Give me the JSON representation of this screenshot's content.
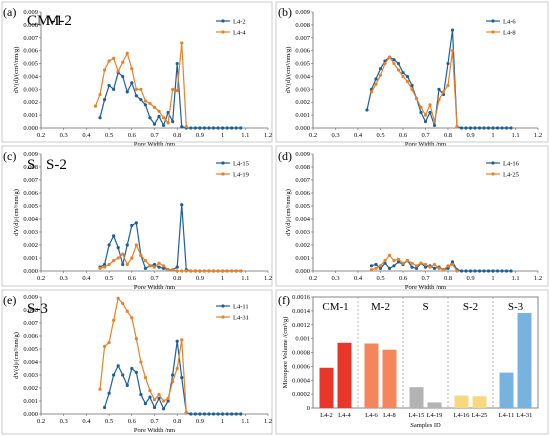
{
  "panel_letters": [
    "(a)",
    "(b)",
    "(c)",
    "(d)",
    "(e)",
    "(f)"
  ],
  "chart_data": [
    {
      "type": "line",
      "panel": "(a)",
      "title": "CM-1",
      "xlabel": "Pore Width /nm",
      "ylabel": "dV(d)/(cm³/nm/g)",
      "xlim": [
        0.2,
        1.2
      ],
      "ylim": [
        0,
        0.009
      ],
      "xticks": [
        "0.2",
        "0.3",
        "0.4",
        "0.5",
        "0.6",
        "0.7",
        "0.8",
        "0.9",
        "1",
        "1.1",
        "1.2"
      ],
      "yticks": [
        "0.000",
        "0.001",
        "0.002",
        "0.003",
        "0.004",
        "0.005",
        "0.006",
        "0.007",
        "0.008",
        "0.009"
      ],
      "legend_position": "top-right",
      "series": [
        {
          "name": "L4-2",
          "color": "#1f5f96",
          "x": [
            0.46,
            0.48,
            0.5,
            0.52,
            0.54,
            0.56,
            0.58,
            0.6,
            0.62,
            0.64,
            0.66,
            0.68,
            0.7,
            0.72,
            0.74,
            0.76,
            0.78,
            0.8,
            0.82,
            0.84,
            0.86,
            0.88,
            0.9,
            0.92,
            0.94,
            0.96,
            0.98,
            1.0,
            1.02,
            1.04,
            1.06,
            1.08
          ],
          "y": [
            0.0008,
            0.0022,
            0.0033,
            0.003,
            0.0043,
            0.004,
            0.0028,
            0.0035,
            0.0025,
            0.0022,
            0.0018,
            0.0008,
            0.0003,
            0.0009,
            0.0002,
            0.0012,
            0.0005,
            0.005,
            0.0001,
            0,
            0,
            0,
            0,
            0,
            0,
            0,
            0,
            0,
            0,
            0,
            0,
            0
          ]
        },
        {
          "name": "L4-4",
          "color": "#e8822a",
          "x": [
            0.44,
            0.46,
            0.48,
            0.5,
            0.52,
            0.54,
            0.56,
            0.58,
            0.6,
            0.62,
            0.64,
            0.66,
            0.68,
            0.7,
            0.72,
            0.74,
            0.76,
            0.78,
            0.8,
            0.82,
            0.84
          ],
          "y": [
            0.0017,
            0.0026,
            0.0045,
            0.0052,
            0.0054,
            0.0044,
            0.0051,
            0.0058,
            0.0046,
            0.003,
            0.003,
            0.0021,
            0.0019,
            0.0016,
            0.0013,
            0.0008,
            0.0004,
            0.003,
            0.0029,
            0.0066,
            0.0001
          ]
        }
      ]
    },
    {
      "type": "line",
      "panel": "(b)",
      "title": "M-2",
      "xlabel": "Pore Width /nm",
      "ylabel": "dV(d)/(cm³/nm/g)",
      "xlim": [
        0.2,
        1.2
      ],
      "ylim": [
        0,
        0.009
      ],
      "xticks": [
        "0.2",
        "0.3",
        "0.4",
        "0.5",
        "0.6",
        "0.7",
        "0.8",
        "0.9",
        "1",
        "1.1",
        "1.2"
      ],
      "yticks": [
        "0.000",
        "0.001",
        "0.002",
        "0.003",
        "0.004",
        "0.005",
        "0.006",
        "0.007",
        "0.008",
        "0.009"
      ],
      "legend_position": "top-right",
      "series": [
        {
          "name": "L4-6",
          "color": "#1f5f96",
          "x": [
            0.44,
            0.46,
            0.48,
            0.5,
            0.52,
            0.54,
            0.56,
            0.58,
            0.6,
            0.62,
            0.64,
            0.66,
            0.68,
            0.7,
            0.72,
            0.74,
            0.76,
            0.78,
            0.8,
            0.82,
            0.84,
            0.86,
            0.88,
            0.9,
            0.92,
            0.94,
            0.96,
            0.98,
            1.0,
            1.02,
            1.04,
            1.06,
            1.08
          ],
          "y": [
            0.0014,
            0.003,
            0.0038,
            0.0046,
            0.0052,
            0.0055,
            0.0053,
            0.005,
            0.0043,
            0.004,
            0.0033,
            0.0023,
            0.0012,
            0.0005,
            0.0012,
            0.0002,
            0.003,
            0.0026,
            0.005,
            0.0076,
            0.0001,
            0,
            0,
            0,
            0,
            0,
            0,
            0,
            0,
            0,
            0,
            0,
            0
          ]
        },
        {
          "name": "L4-8",
          "color": "#e8822a",
          "x": [
            0.46,
            0.48,
            0.5,
            0.52,
            0.54,
            0.56,
            0.58,
            0.6,
            0.62,
            0.64,
            0.66,
            0.68,
            0.7,
            0.72,
            0.74,
            0.76,
            0.78,
            0.8,
            0.82,
            0.84
          ],
          "y": [
            0.0028,
            0.0034,
            0.0041,
            0.005,
            0.0055,
            0.005,
            0.0045,
            0.004,
            0.0036,
            0.003,
            0.0023,
            0.0016,
            0.001,
            0.0018,
            0.0005,
            0.0022,
            0.0028,
            0.0033,
            0.006,
            0.0001
          ]
        }
      ]
    },
    {
      "type": "line",
      "panel": "(c)",
      "title": "S",
      "xlabel": "Pore Width /nm",
      "ylabel": "dV(d)/(cm³/nm/g)",
      "xlim": [
        0.2,
        1.2
      ],
      "ylim": [
        0,
        0.009
      ],
      "xticks": [
        "0.2",
        "0.3",
        "0.4",
        "0.5",
        "0.6",
        "0.7",
        "0.8",
        "0.9",
        "1",
        "1.1",
        "1.2"
      ],
      "yticks": [
        "0.000",
        "0.001",
        "0.002",
        "0.003",
        "0.004",
        "0.005",
        "0.006",
        "0.007",
        "0.008",
        "0.009"
      ],
      "legend_position": "top-right",
      "series": [
        {
          "name": "L4-15",
          "color": "#1f5f96",
          "x": [
            0.46,
            0.48,
            0.5,
            0.52,
            0.54,
            0.56,
            0.58,
            0.6,
            0.62,
            0.64,
            0.66,
            0.68,
            0.7,
            0.72,
            0.74,
            0.76,
            0.78,
            0.8,
            0.82,
            0.84,
            0.86,
            0.88,
            0.9,
            0.92,
            0.94,
            0.96,
            0.98,
            1.0,
            1.02,
            1.04,
            1.06,
            1.08
          ],
          "y": [
            0.0003,
            0.0005,
            0.002,
            0.0027,
            0.0018,
            0.0005,
            0.002,
            0.0035,
            0.0037,
            0.0012,
            0.0002,
            0.0004,
            0.0005,
            0.0003,
            0.0002,
            0.0001,
            0.0001,
            0.0003,
            0.0051,
            0.0001,
            0,
            0,
            0,
            0,
            0,
            0,
            0,
            0,
            0,
            0,
            0,
            0
          ]
        },
        {
          "name": "L4-19",
          "color": "#e8822a",
          "x": [
            0.46,
            0.48,
            0.5,
            0.52,
            0.54,
            0.56,
            0.58,
            0.6,
            0.62,
            0.64,
            0.66,
            0.68,
            0.7,
            0.72,
            0.74,
            0.76,
            0.78,
            0.8,
            0.82,
            0.84,
            0.86,
            0.88,
            0.9,
            0.92,
            0.94,
            0.96,
            0.98,
            1.0,
            1.02,
            1.04,
            1.06,
            1.08
          ],
          "y": [
            0.0002,
            0.0003,
            0.0005,
            0.0008,
            0.001,
            0.0013,
            0.0005,
            0.001,
            0.002,
            0.0012,
            0.0008,
            0.0004,
            0.0003,
            0.0006,
            0.0004,
            0.0001,
            0.0001,
            0,
            0,
            0,
            0,
            0,
            0,
            0,
            0,
            0,
            0,
            0,
            0,
            0,
            0,
            0
          ]
        }
      ]
    },
    {
      "type": "line",
      "panel": "(d)",
      "title": "S-2",
      "xlabel": "Pore Width /nm",
      "ylabel": "dV(d)/(cm³/nm/g)",
      "xlim": [
        0.2,
        1.2
      ],
      "ylim": [
        0,
        0.009
      ],
      "xticks": [
        "0.2",
        "0.3",
        "0.4",
        "0.5",
        "0.6",
        "0.7",
        "0.8",
        "0.9",
        "1",
        "1.1",
        "1.2"
      ],
      "yticks": [
        "0.000",
        "0.001",
        "0.002",
        "0.003",
        "0.004",
        "0.005",
        "0.006",
        "0.007",
        "0.008",
        "0.009"
      ],
      "legend_position": "top-right",
      "series": [
        {
          "name": "L4-16",
          "color": "#1f5f96",
          "x": [
            0.46,
            0.48,
            0.5,
            0.52,
            0.54,
            0.56,
            0.58,
            0.6,
            0.62,
            0.64,
            0.66,
            0.68,
            0.7,
            0.72,
            0.74,
            0.76,
            0.78,
            0.8,
            0.82,
            0.84,
            0.86,
            0.88,
            0.9,
            0.92,
            0.94,
            0.96,
            0.98,
            1.0,
            1.02,
            1.04,
            1.06,
            1.08
          ],
          "y": [
            0.0004,
            0.0005,
            0.0002,
            0.0006,
            0.0002,
            0.0004,
            0.0007,
            0.0005,
            0.0008,
            0.0003,
            0.0002,
            0.0006,
            0.0003,
            0.0004,
            0.0002,
            0.0003,
            0.0001,
            0.0002,
            0.0007,
            0.0001,
            0,
            0,
            0,
            0,
            0,
            0,
            0,
            0,
            0,
            0,
            0,
            0
          ]
        },
        {
          "name": "L4-25",
          "color": "#e8822a",
          "x": [
            0.46,
            0.48,
            0.5,
            0.52,
            0.54,
            0.56,
            0.58,
            0.6,
            0.62,
            0.64,
            0.66,
            0.68,
            0.7,
            0.72,
            0.74,
            0.76,
            0.78,
            0.8,
            0.82,
            0.84
          ],
          "y": [
            0.0001,
            0.0002,
            0.0004,
            0.0008,
            0.0012,
            0.0008,
            0.0009,
            0.0006,
            0.0008,
            0.0006,
            0.0004,
            0.0006,
            0.0005,
            0.0003,
            0.0005,
            0.0002,
            0.0001,
            0.0004,
            0.0005,
            0
          ]
        }
      ]
    },
    {
      "type": "line",
      "panel": "(e)",
      "title": "S-3",
      "xlabel": "Pore Width /nm",
      "ylabel": "dV(d)/(cm³/nm/g)",
      "xlim": [
        0.2,
        1.2
      ],
      "ylim": [
        0,
        0.009
      ],
      "xticks": [
        "0.2",
        "0.3",
        "0.4",
        "0.5",
        "0.6",
        "0.7",
        "0.8",
        "0.9",
        "1",
        "1.1",
        "1.2"
      ],
      "yticks": [
        "0.000",
        "0.001",
        "0.002",
        "0.003",
        "0.004",
        "0.005",
        "0.006",
        "0.007",
        "0.008",
        "0.009"
      ],
      "legend_position": "top-right",
      "series": [
        {
          "name": "L4-11",
          "color": "#1f5f96",
          "x": [
            0.48,
            0.5,
            0.52,
            0.54,
            0.56,
            0.58,
            0.6,
            0.62,
            0.64,
            0.66,
            0.68,
            0.7,
            0.72,
            0.74,
            0.76,
            0.78,
            0.8,
            0.82,
            0.84,
            0.86,
            0.88,
            0.9,
            0.92,
            0.94,
            0.96,
            0.98,
            1.0,
            1.02,
            1.04,
            1.06,
            1.08
          ],
          "y": [
            0.0005,
            0.0016,
            0.003,
            0.0037,
            0.003,
            0.0022,
            0.0035,
            0.0032,
            0.0015,
            0.0008,
            0.0013,
            0.0005,
            0.0012,
            0.0004,
            0.001,
            0.003,
            0.0056,
            0.0028,
            0.0001,
            0,
            0,
            0,
            0,
            0,
            0,
            0,
            0,
            0,
            0,
            0,
            0
          ]
        },
        {
          "name": "L4-31",
          "color": "#e8822a",
          "x": [
            0.46,
            0.48,
            0.5,
            0.52,
            0.54,
            0.56,
            0.58,
            0.6,
            0.62,
            0.64,
            0.66,
            0.68,
            0.7,
            0.72,
            0.74,
            0.76,
            0.78,
            0.8,
            0.82,
            0.84
          ],
          "y": [
            0.0019,
            0.0052,
            0.0055,
            0.0072,
            0.0089,
            0.0085,
            0.0079,
            0.0074,
            0.0058,
            0.004,
            0.0028,
            0.0018,
            0.0011,
            0.0015,
            0.001,
            0.0012,
            0.0025,
            0.0035,
            0.0057,
            0.0001
          ]
        }
      ]
    },
    {
      "type": "bar",
      "panel": "(f)",
      "xlabel": "Samples ID",
      "ylabel": "Micropore Volume /(cm³/g)",
      "ylim": [
        0,
        0.0016
      ],
      "yticks": [
        "0",
        "0.0002",
        "0.0004",
        "0.0006",
        "0.0008",
        "0.001",
        "0.0012",
        "0.0014",
        "0.0016"
      ],
      "groups": [
        {
          "label": "CM-1",
          "categories": [
            "L4-2",
            "L4-4"
          ],
          "values": [
            0.00058,
            0.00094
          ],
          "colors": [
            "#e8372a",
            "#e8372a"
          ]
        },
        {
          "label": "M-2",
          "categories": [
            "L4-6",
            "L4-8"
          ],
          "values": [
            0.00093,
            0.00084
          ],
          "colors": [
            "#f5855a",
            "#f5855a"
          ]
        },
        {
          "label": "S",
          "categories": [
            "L4-15",
            "L4-19"
          ],
          "values": [
            0.0003,
            8e-05
          ],
          "colors": [
            "#b3b3b3",
            "#b3b3b3"
          ]
        },
        {
          "label": "S-2",
          "categories": [
            "L4-16",
            "L4-25"
          ],
          "values": [
            0.00018,
            0.00017
          ],
          "colors": [
            "#f8d87f",
            "#f8d87f"
          ]
        },
        {
          "label": "S-3",
          "categories": [
            "L4-11",
            "L4-31"
          ],
          "values": [
            0.00051,
            0.00137
          ],
          "colors": [
            "#78b3e0",
            "#78b3e0"
          ]
        }
      ]
    }
  ]
}
